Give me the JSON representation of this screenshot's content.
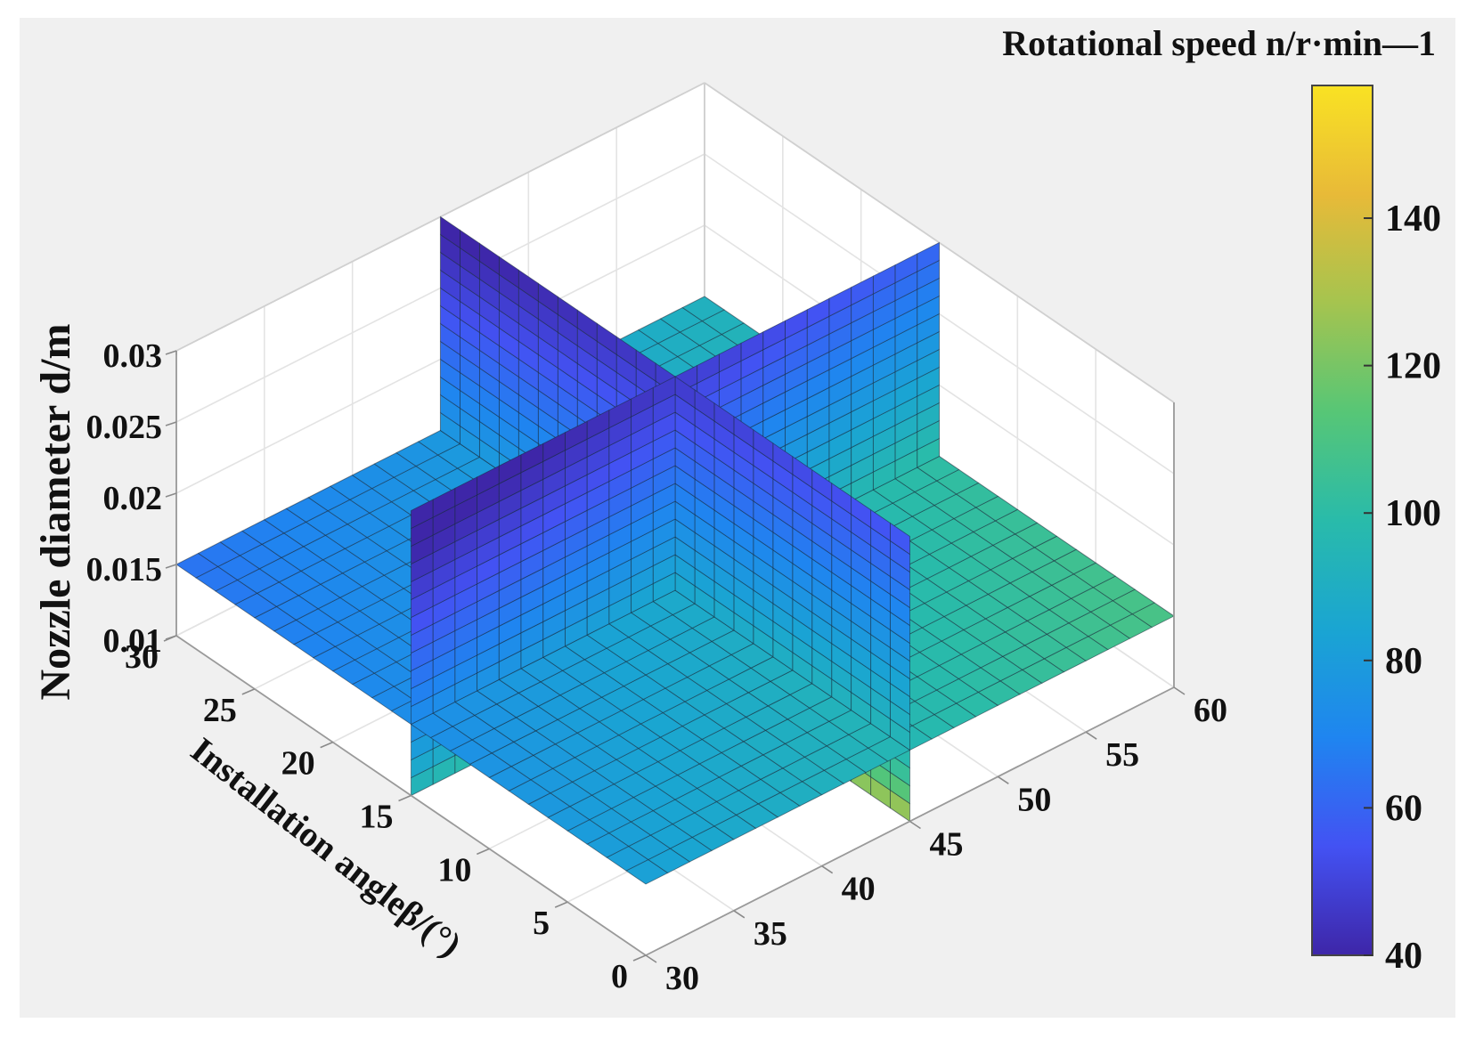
{
  "chart_data": {
    "type": "slice",
    "title": "",
    "xlabel": "",
    "ylabel": "Installation angleβ/(°)",
    "zlabel": "Nozzle diameter d/m",
    "colorbar_label": "Rotational speed n/r·min—1",
    "x_ticks": [
      "30",
      "35",
      "40",
      "45",
      "50",
      "55",
      "60"
    ],
    "y_ticks": [
      "0",
      "5",
      "10",
      "15",
      "20",
      "25",
      "30"
    ],
    "z_ticks": [
      "0.01",
      "0.015",
      "0.02",
      "0.025",
      "0.03"
    ],
    "colorbar_ticks": [
      "40",
      "60",
      "80",
      "100",
      "120",
      "140"
    ],
    "xlim": [
      30,
      60
    ],
    "ylim": [
      0,
      30
    ],
    "zlim": [
      0.01,
      0.03
    ],
    "clim": [
      40,
      158
    ],
    "slices": [
      {
        "name": "horizontal slice",
        "axis": "z",
        "value": 0.015
      },
      {
        "name": "vertical slice x",
        "axis": "x",
        "value": 45
      },
      {
        "name": "vertical slice y",
        "axis": "y",
        "value": 15
      }
    ],
    "colormap": [
      "#3e26a8",
      "#4352f3",
      "#1f85f0",
      "#1aa5d2",
      "#29bbaa",
      "#57c676",
      "#a5c44f",
      "#e8ba38",
      "#f9e223"
    ],
    "background": "#f0f0f0"
  }
}
